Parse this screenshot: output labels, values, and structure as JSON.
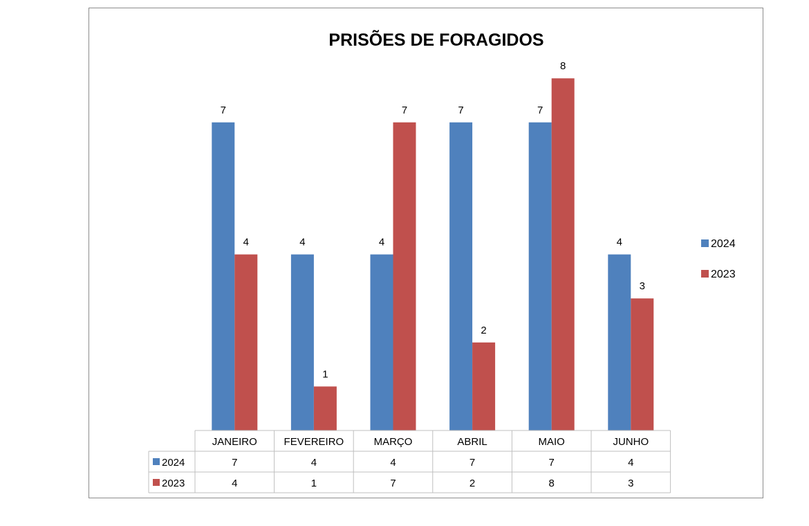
{
  "chart_data": {
    "type": "bar",
    "title": "PRISÕES DE FORAGIDOS",
    "categories": [
      "JANEIRO",
      "FEVEREIRO",
      "MARÇO",
      "ABRIL",
      "MAIO",
      "JUNHO"
    ],
    "series": [
      {
        "name": "2024",
        "color": "#4f81bd",
        "values": [
          7,
          4,
          4,
          7,
          7,
          4
        ]
      },
      {
        "name": "2023",
        "color": "#c0504d",
        "values": [
          4,
          1,
          7,
          2,
          8,
          3
        ]
      }
    ],
    "xlabel": "",
    "ylabel": "",
    "ylim": [
      0,
      8
    ],
    "grid": false,
    "legend": "right",
    "data_table": true
  }
}
